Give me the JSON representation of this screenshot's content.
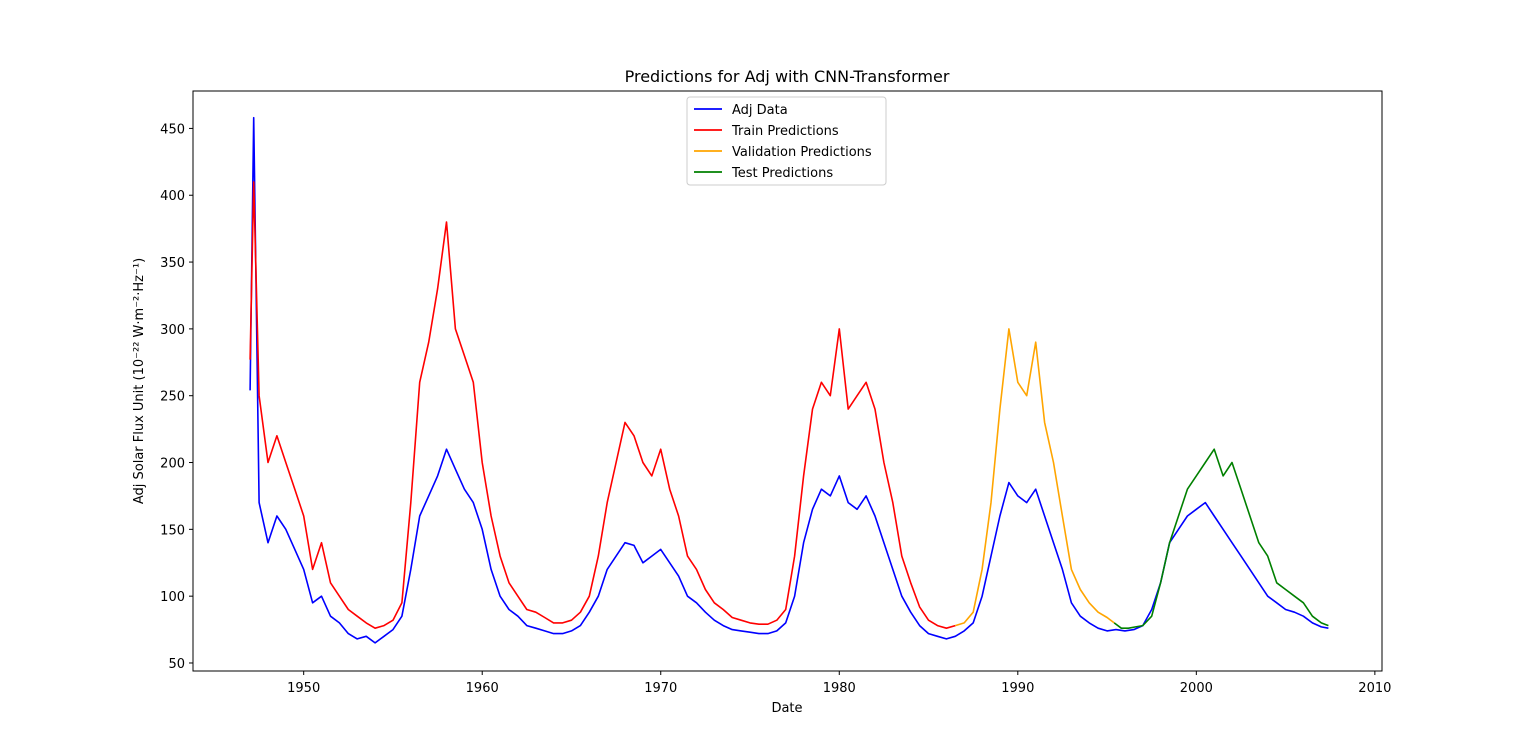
{
  "chart_data": {
    "type": "line",
    "title": "Predictions for Adj with CNN-Transformer",
    "xlabel": "Date",
    "ylabel": "Adj Solar Flux Unit (10⁻²² W·m⁻²·Hz⁻¹)",
    "xlim": [
      1943.8,
      2010.4
    ],
    "ylim": [
      44,
      478
    ],
    "xticks": [
      1950,
      1960,
      1970,
      1980,
      1990,
      2000,
      2010
    ],
    "yticks": [
      50,
      100,
      150,
      200,
      250,
      300,
      350,
      400,
      450
    ],
    "grid": false,
    "legend_position": "upper center",
    "series": [
      {
        "name": "Adj Data",
        "color": "#0000ff",
        "x": [
          1947.0,
          1947.2,
          1947.5,
          1948.0,
          1948.5,
          1949.0,
          1949.5,
          1950.0,
          1950.5,
          1951.0,
          1951.5,
          1952.0,
          1952.5,
          1953.0,
          1953.5,
          1954.0,
          1954.5,
          1955.0,
          1955.5,
          1956.0,
          1956.5,
          1957.0,
          1957.5,
          1958.0,
          1958.5,
          1959.0,
          1959.5,
          1960.0,
          1960.5,
          1961.0,
          1961.5,
          1962.0,
          1962.5,
          1963.0,
          1963.5,
          1964.0,
          1964.5,
          1965.0,
          1965.5,
          1966.0,
          1966.5,
          1967.0,
          1967.5,
          1968.0,
          1968.5,
          1969.0,
          1969.5,
          1970.0,
          1970.5,
          1971.0,
          1971.5,
          1972.0,
          1972.5,
          1973.0,
          1973.5,
          1974.0,
          1974.5,
          1975.0,
          1975.5,
          1976.0,
          1976.5,
          1977.0,
          1977.5,
          1978.0,
          1978.5,
          1979.0,
          1979.5,
          1980.0,
          1980.5,
          1981.0,
          1981.5,
          1982.0,
          1982.5,
          1983.0,
          1983.5,
          1984.0,
          1984.5,
          1985.0,
          1985.5,
          1986.0,
          1986.5,
          1987.0,
          1987.5,
          1988.0,
          1988.5,
          1989.0,
          1989.5,
          1990.0,
          1990.5,
          1991.0,
          1991.5,
          1992.0,
          1992.5,
          1993.0,
          1993.5,
          1994.0,
          1994.5,
          1995.0,
          1995.5,
          1996.0,
          1996.5,
          1997.0,
          1997.5,
          1998.0,
          1998.5,
          1999.0,
          1999.5,
          2000.0,
          2000.5,
          2001.0,
          2001.5,
          2002.0,
          2002.5,
          2003.0,
          2003.5,
          2004.0,
          2004.5,
          2005.0,
          2005.5,
          2006.0,
          2006.5,
          2007.0,
          2007.4
        ],
        "y": [
          254,
          458,
          170,
          140,
          160,
          150,
          135,
          120,
          95,
          100,
          85,
          80,
          72,
          68,
          70,
          65,
          70,
          75,
          85,
          120,
          160,
          175,
          190,
          210,
          195,
          180,
          170,
          150,
          120,
          100,
          90,
          85,
          78,
          76,
          74,
          72,
          72,
          74,
          78,
          88,
          100,
          120,
          130,
          140,
          138,
          125,
          130,
          135,
          125,
          115,
          100,
          95,
          88,
          82,
          78,
          75,
          74,
          73,
          72,
          72,
          74,
          80,
          100,
          140,
          165,
          180,
          175,
          190,
          170,
          165,
          175,
          160,
          140,
          120,
          100,
          88,
          78,
          72,
          70,
          68,
          70,
          74,
          80,
          100,
          130,
          160,
          185,
          175,
          170,
          180,
          160,
          140,
          120,
          95,
          85,
          80,
          76,
          74,
          75,
          74,
          75,
          78,
          90,
          110,
          140,
          150,
          160,
          165,
          170,
          160,
          150,
          140,
          130,
          120,
          110,
          100,
          95,
          90,
          88,
          85,
          80,
          77,
          76
        ]
      },
      {
        "name": "Train Predictions",
        "color": "#ff0000",
        "x": [
          1947.0,
          1947.2,
          1947.5,
          1948.0,
          1948.5,
          1949.0,
          1949.5,
          1950.0,
          1950.5,
          1951.0,
          1951.5,
          1952.0,
          1952.5,
          1953.0,
          1953.5,
          1954.0,
          1954.5,
          1955.0,
          1955.5,
          1956.0,
          1956.5,
          1957.0,
          1957.5,
          1958.0,
          1958.5,
          1959.0,
          1959.5,
          1960.0,
          1960.5,
          1961.0,
          1961.5,
          1962.0,
          1962.5,
          1963.0,
          1963.5,
          1964.0,
          1964.5,
          1965.0,
          1965.5,
          1966.0,
          1966.5,
          1967.0,
          1967.5,
          1968.0,
          1968.5,
          1969.0,
          1969.5,
          1970.0,
          1970.5,
          1971.0,
          1971.5,
          1972.0,
          1972.5,
          1973.0,
          1973.5,
          1974.0,
          1974.5,
          1975.0,
          1975.5,
          1976.0,
          1976.5,
          1977.0,
          1977.5,
          1978.0,
          1978.5,
          1979.0,
          1979.5,
          1980.0,
          1980.5,
          1981.0,
          1981.5,
          1982.0,
          1982.5,
          1983.0,
          1983.5,
          1984.0,
          1984.5,
          1985.0,
          1985.5,
          1986.0,
          1986.5
        ],
        "y": [
          277,
          410,
          250,
          200,
          220,
          200,
          180,
          160,
          120,
          140,
          110,
          100,
          90,
          85,
          80,
          76,
          78,
          82,
          95,
          170,
          260,
          290,
          330,
          380,
          300,
          280,
          260,
          200,
          160,
          130,
          110,
          100,
          90,
          88,
          84,
          80,
          80,
          82,
          88,
          100,
          130,
          170,
          200,
          230,
          220,
          200,
          190,
          210,
          180,
          160,
          130,
          120,
          105,
          95,
          90,
          84,
          82,
          80,
          79,
          79,
          82,
          90,
          130,
          190,
          240,
          260,
          250,
          300,
          240,
          250,
          260,
          240,
          200,
          170,
          130,
          110,
          92,
          82,
          78,
          76,
          78
        ]
      },
      {
        "name": "Validation Predictions",
        "color": "#ffa500",
        "x": [
          1986.5,
          1987.0,
          1987.5,
          1988.0,
          1988.5,
          1989.0,
          1989.5,
          1990.0,
          1990.5,
          1991.0,
          1991.5,
          1992.0,
          1992.5,
          1993.0,
          1993.5,
          1994.0,
          1994.5,
          1995.0,
          1995.4
        ],
        "y": [
          78,
          80,
          88,
          120,
          170,
          240,
          300,
          260,
          250,
          290,
          230,
          200,
          160,
          120,
          105,
          95,
          88,
          84,
          80
        ]
      },
      {
        "name": "Test Predictions",
        "color": "#008000",
        "x": [
          1995.4,
          1995.8,
          1996.2,
          1996.6,
          1997.0,
          1997.5,
          1998.0,
          1998.5,
          1999.0,
          1999.5,
          2000.0,
          2000.5,
          2001.0,
          2001.5,
          2002.0,
          2002.5,
          2003.0,
          2003.5,
          2004.0,
          2004.5,
          2005.0,
          2005.5,
          2006.0,
          2006.5,
          2007.0,
          2007.4
        ],
        "y": [
          80,
          76,
          76,
          77,
          78,
          85,
          110,
          140,
          160,
          180,
          190,
          200,
          210,
          190,
          200,
          180,
          160,
          140,
          130,
          110,
          105,
          100,
          95,
          85,
          80,
          78
        ]
      }
    ]
  }
}
